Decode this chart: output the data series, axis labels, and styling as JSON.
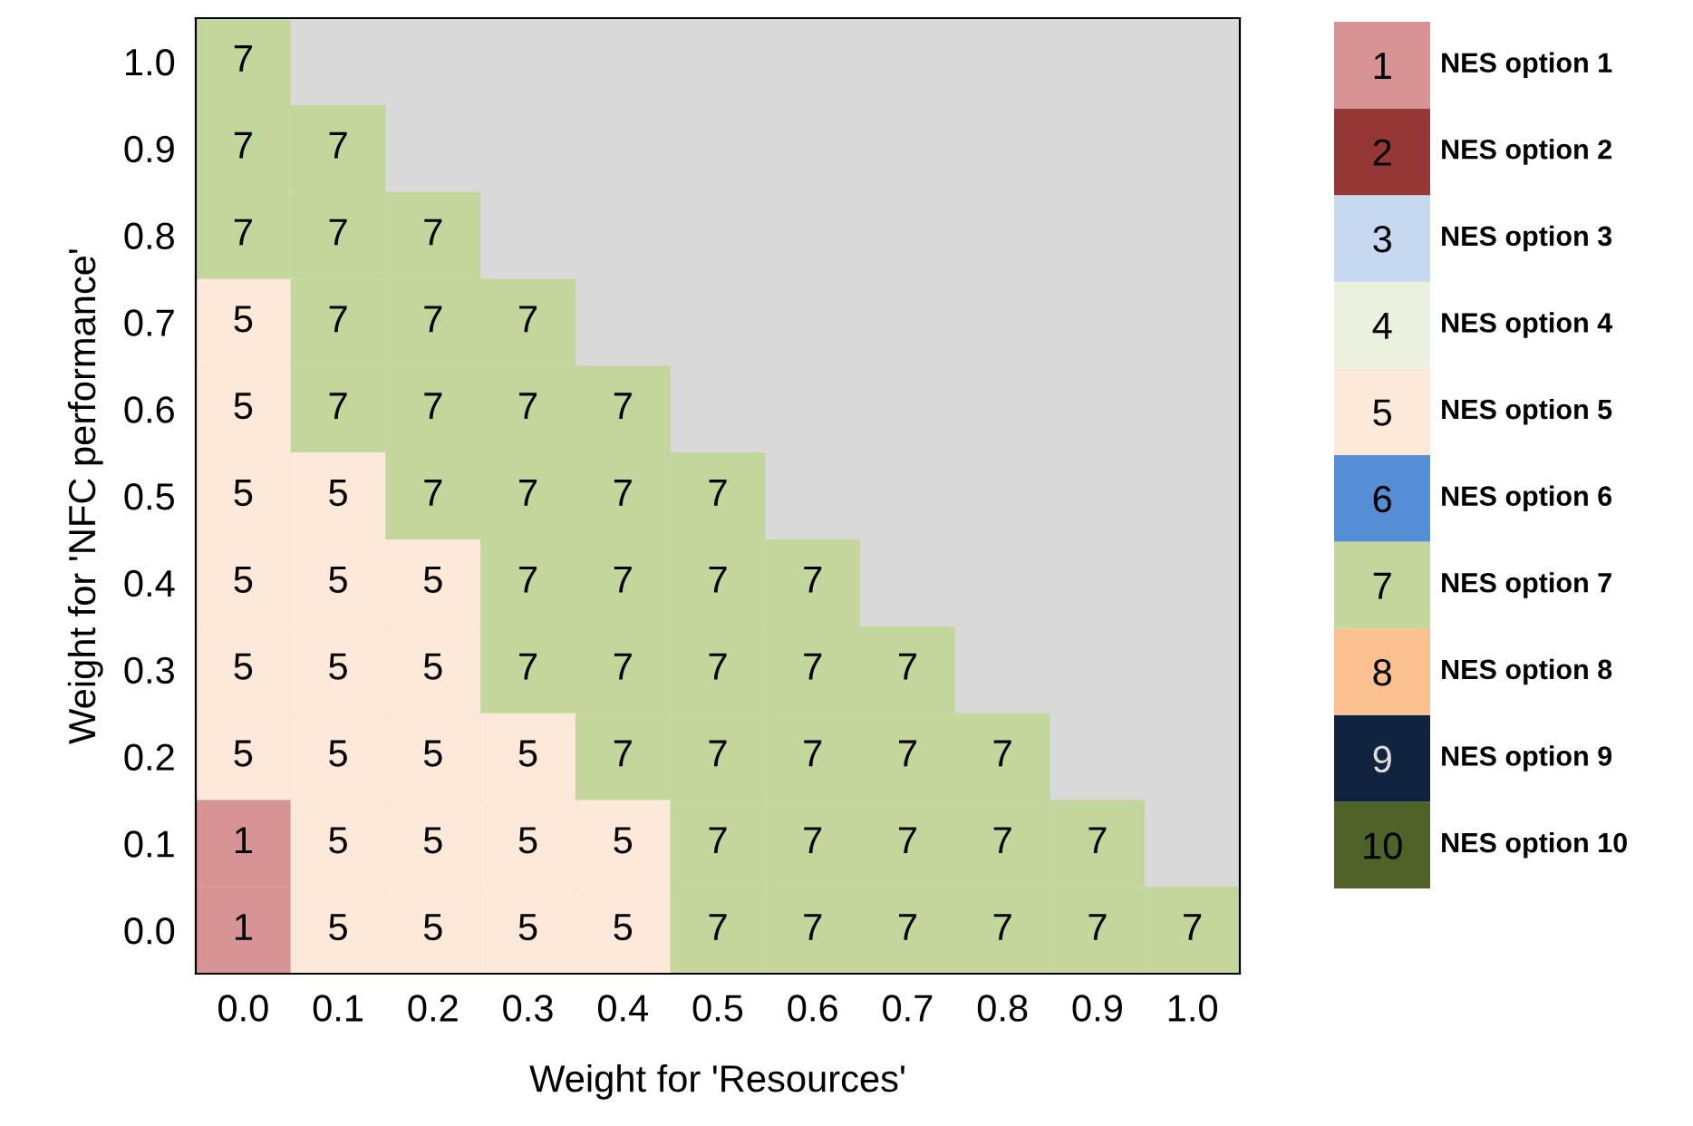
{
  "chart_data": {
    "type": "heatmap",
    "xlabel": "Weight for 'Resources'",
    "ylabel": "Weight for 'NFC performance'",
    "categories": [
      "0.0",
      "0.1",
      "0.2",
      "0.3",
      "0.4",
      "0.5",
      "0.6",
      "0.7",
      "0.8",
      "0.9",
      "1.0"
    ],
    "y_categories": [
      "1.0",
      "0.9",
      "0.8",
      "0.7",
      "0.6",
      "0.5",
      "0.4",
      "0.3",
      "0.2",
      "0.1",
      "0.0"
    ],
    "cells": [
      [
        7,
        null,
        null,
        null,
        null,
        null,
        null,
        null,
        null,
        null,
        null
      ],
      [
        7,
        7,
        null,
        null,
        null,
        null,
        null,
        null,
        null,
        null,
        null
      ],
      [
        7,
        7,
        7,
        null,
        null,
        null,
        null,
        null,
        null,
        null,
        null
      ],
      [
        5,
        7,
        7,
        7,
        null,
        null,
        null,
        null,
        null,
        null,
        null
      ],
      [
        5,
        7,
        7,
        7,
        7,
        null,
        null,
        null,
        null,
        null,
        null
      ],
      [
        5,
        5,
        7,
        7,
        7,
        7,
        null,
        null,
        null,
        null,
        null
      ],
      [
        5,
        5,
        5,
        7,
        7,
        7,
        7,
        null,
        null,
        null,
        null
      ],
      [
        5,
        5,
        5,
        7,
        7,
        7,
        7,
        7,
        null,
        null,
        null
      ],
      [
        5,
        5,
        5,
        5,
        7,
        7,
        7,
        7,
        7,
        null,
        null
      ],
      [
        1,
        5,
        5,
        5,
        5,
        7,
        7,
        7,
        7,
        7,
        null
      ],
      [
        1,
        5,
        5,
        5,
        5,
        7,
        7,
        7,
        7,
        7,
        7
      ]
    ],
    "data_labels": true,
    "clim": [
      0.5,
      10.5
    ],
    "cticks": [
      1,
      2,
      3,
      4,
      5,
      6,
      7,
      8,
      9,
      10
    ],
    "colors": [
      "#d89494",
      "#953735",
      "#c6d9f1",
      "#ebf1de",
      "#fde9d9",
      "#558ed5",
      "#c3d69b",
      "#fac090",
      "#10243f",
      "#4f6228"
    ],
    "annotations": [
      "NES option 1",
      "NES option 2",
      "NES option 3",
      "NES option 4",
      "NES option 5",
      "NES option 6",
      "NES option 7",
      "NES option 8",
      "NES option 9",
      "NES option 10"
    ]
  }
}
